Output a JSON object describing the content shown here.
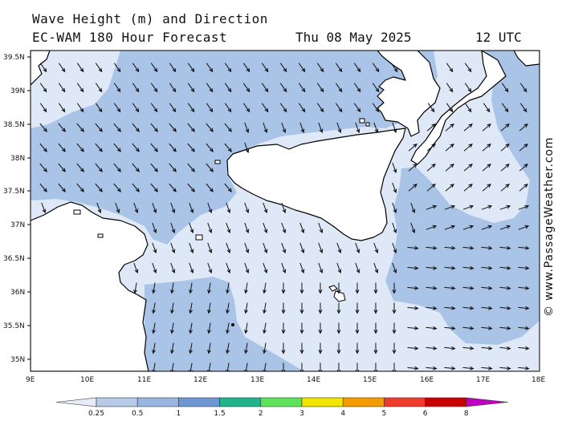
{
  "title": "Wave Height (m) and Direction",
  "model": "EC-WAM 180 Hour Forecast",
  "date": "Thu 08 May 2025",
  "time": "12 UTC",
  "credit": "© www.PassageWeather.com",
  "colors": {
    "land": "#ffffff",
    "band_0_25": "#dfe8f6",
    "band_0_5": "#a9c4e6",
    "coast": "#000000",
    "arrow": "#111111"
  },
  "axes": {
    "lat_labels": [
      "39.5N",
      "39N",
      "38.5N",
      "38N",
      "37.5N",
      "37N",
      "36.5N",
      "36N",
      "35.5N",
      "35N"
    ],
    "lon_labels": [
      "9E",
      "10E",
      "11E",
      "12E",
      "13E",
      "14E",
      "15E",
      "16E",
      "17E",
      "18E"
    ]
  },
  "legend": {
    "labels": [
      "0.25",
      "0.5",
      "1",
      "1.5",
      "2",
      "3",
      "4",
      "5",
      "6",
      "8"
    ],
    "colors": [
      "#e6edf7",
      "#b7cbe8",
      "#98b6df",
      "#6f97d1",
      "#22b48a",
      "#5fe35a",
      "#f2e600",
      "#f79c00",
      "#ef3b2c",
      "#c80000",
      "#c000c0"
    ]
  }
}
